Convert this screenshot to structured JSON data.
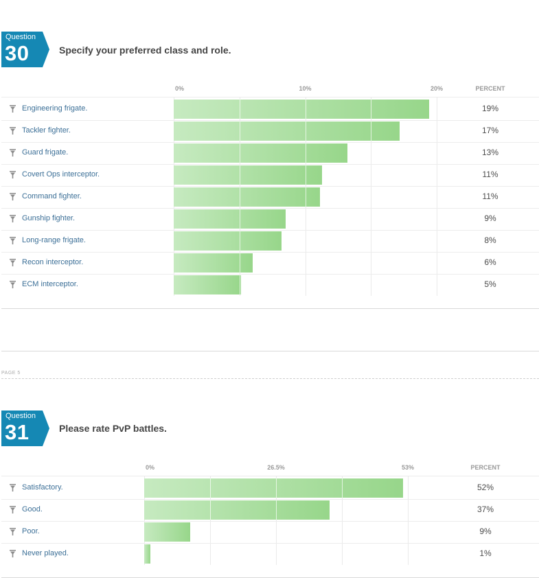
{
  "page_label": "PAGE 5",
  "questions": [
    {
      "label": "Question",
      "number": "30",
      "title": "Specify your preferred class and role."
    },
    {
      "label": "Question",
      "number": "31",
      "title": "Please rate PvP battles."
    }
  ],
  "chart_data": [
    {
      "type": "bar",
      "orientation": "horizontal",
      "title": "Specify your preferred class and role.",
      "percent_header": "PERCENT",
      "ticks": [
        "0%",
        "10%",
        "20%"
      ],
      "xlim": [
        0,
        20
      ],
      "categories": [
        "Engineering frigate.",
        "Tackler fighter.",
        "Guard frigate.",
        "Covert Ops interceptor.",
        "Command fighter.",
        "Gunship fighter.",
        "Long-range frigate.",
        "Recon interceptor.",
        "ECM interceptor."
      ],
      "values": [
        19.4,
        17.2,
        13.2,
        11.3,
        11.1,
        8.5,
        8.2,
        6.0,
        5.1
      ],
      "labels": [
        "19%",
        "17%",
        "13%",
        "11%",
        "11%",
        "9%",
        "8%",
        "6%",
        "5%"
      ],
      "colors": {
        "bar_start": "#c6eac0",
        "bar_end": "#97d68a"
      }
    },
    {
      "type": "bar",
      "orientation": "horizontal",
      "title": "Please rate PvP battles.",
      "percent_header": "PERCENT",
      "ticks": [
        "0%",
        "26.5%",
        "53%"
      ],
      "xlim": [
        0,
        53
      ],
      "categories": [
        "Satisfactory.",
        "Good.",
        "Poor.",
        "Never played."
      ],
      "values": [
        52,
        37.2,
        9.3,
        1.3
      ],
      "labels": [
        "52%",
        "37%",
        "9%",
        "1%"
      ],
      "colors": {
        "bar_start": "#c6eac0",
        "bar_end": "#97d68a"
      }
    }
  ]
}
